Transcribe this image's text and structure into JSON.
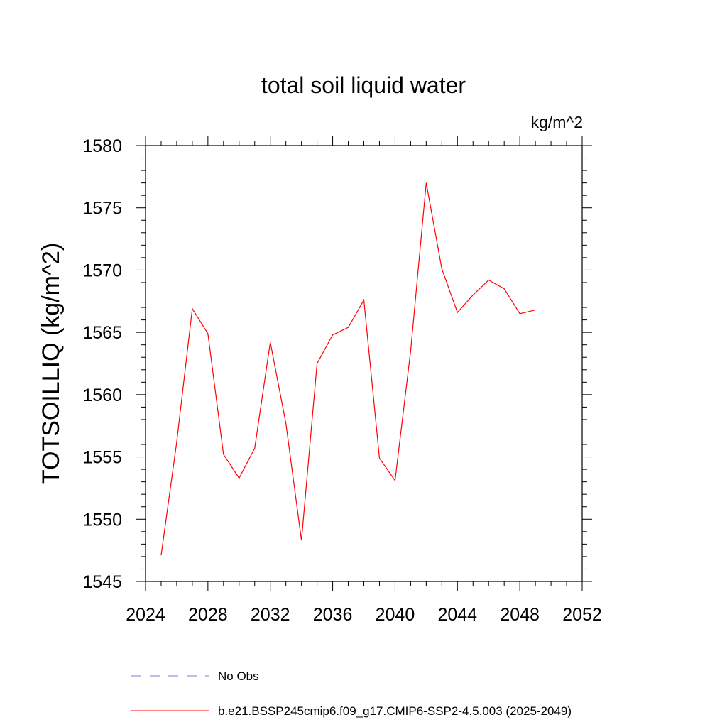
{
  "chart_data": {
    "type": "line",
    "title": "total soil liquid water",
    "units_label": "kg/m^2",
    "ylabel": "TOTSOILLIQ  (kg/m^2)",
    "xlabel": "",
    "xlim": [
      2024,
      2052
    ],
    "ylim": [
      1545,
      1580
    ],
    "x_ticks": [
      2024,
      2028,
      2032,
      2036,
      2040,
      2044,
      2048,
      2052
    ],
    "y_ticks": [
      1545,
      1550,
      1555,
      1560,
      1565,
      1570,
      1575,
      1580
    ],
    "x_minor_step": 1,
    "y_minor_step": 1,
    "grid": false,
    "series": [
      {
        "name": "b.e21.BSSP245cmip6.f09_g17.CMIP6-SSP2-4.5.003 (2025-2049)",
        "color": "#ff0000",
        "x": [
          2025,
          2026,
          2027,
          2028,
          2029,
          2030,
          2031,
          2032,
          2033,
          2034,
          2035,
          2036,
          2037,
          2038,
          2039,
          2040,
          2041,
          2042,
          2043,
          2044,
          2045,
          2046,
          2047,
          2048,
          2049
        ],
        "y": [
          1547.1,
          1556.2,
          1566.9,
          1564.9,
          1555.2,
          1553.3,
          1555.7,
          1564.2,
          1557.7,
          1548.3,
          1562.5,
          1564.8,
          1565.4,
          1567.6,
          1554.9,
          1553.1,
          1563.5,
          1577.0,
          1570.1,
          1566.6,
          1568.0,
          1569.2,
          1568.5,
          1566.5,
          1566.8
        ]
      }
    ],
    "legend": [
      {
        "label": "No Obs",
        "color": "#7b7bd6",
        "style": "dashed"
      },
      {
        "label": "b.e21.BSSP245cmip6.f09_g17.CMIP6-SSP2-4.5.003 (2025-2049)",
        "color": "#ff0000",
        "style": "solid"
      }
    ],
    "legend_position": "bottom"
  }
}
